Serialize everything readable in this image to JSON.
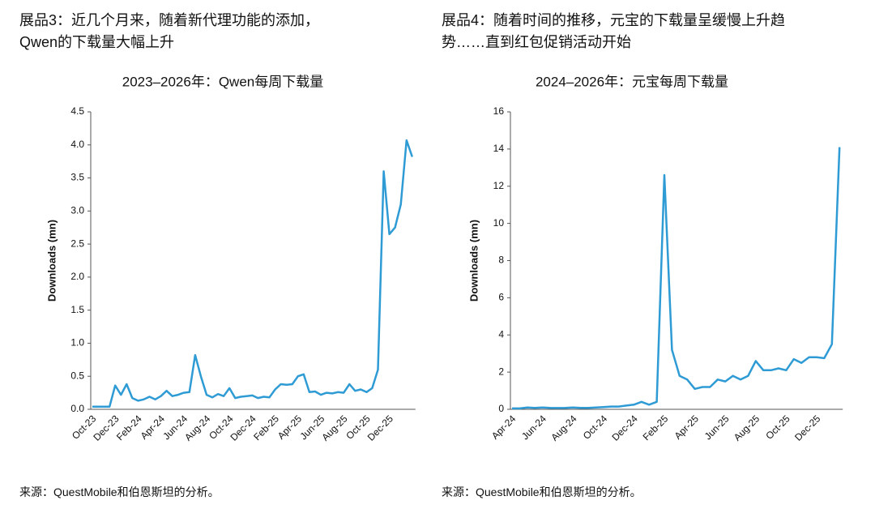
{
  "exhibits": [
    {
      "heading": [
        "展品3：近几个月来，随着新代理功能的添加，",
        "Qwen的下载量大幅上升"
      ],
      "source": "来源：QuestMobile和伯恩斯坦的分析。"
    },
    {
      "heading": [
        "展品4：随着时间的推移，元宝的下载量呈缓慢上升趋",
        "势……直到红包促销活动开始"
      ],
      "source": "来源：QuestMobile和伯恩斯坦的分析。"
    }
  ],
  "chart_data": [
    {
      "type": "line",
      "title": "2023–2026年：Qwen每周下载量",
      "y_label": "Downloads (mn)",
      "color": "#2f9bd5",
      "categories": [
        "Oct-23",
        null,
        null,
        null,
        "Dec-23",
        null,
        null,
        null,
        "Feb-24",
        null,
        null,
        null,
        "Apr-24",
        null,
        null,
        null,
        "Jun-24",
        null,
        null,
        null,
        "Aug-24",
        null,
        null,
        null,
        "Oct-24",
        null,
        null,
        null,
        "Dec-24",
        null,
        null,
        null,
        "Feb-25",
        null,
        null,
        null,
        "Apr-25",
        null,
        null,
        null,
        "Jun-25",
        null,
        null,
        null,
        "Aug-25",
        null,
        null,
        null,
        "Oct-25",
        null,
        null,
        null,
        "Dec-25",
        null,
        null,
        null,
        null
      ],
      "values": [
        0.04,
        0.04,
        0.04,
        0.04,
        0.36,
        0.22,
        0.38,
        0.17,
        0.13,
        0.15,
        0.19,
        0.15,
        0.2,
        0.28,
        0.2,
        0.22,
        0.25,
        0.26,
        0.82,
        0.5,
        0.22,
        0.18,
        0.23,
        0.2,
        0.32,
        0.17,
        0.19,
        0.2,
        0.21,
        0.17,
        0.19,
        0.18,
        0.3,
        0.38,
        0.37,
        0.38,
        0.5,
        0.53,
        0.26,
        0.27,
        0.22,
        0.25,
        0.24,
        0.26,
        0.25,
        0.38,
        0.28,
        0.3,
        0.26,
        0.32,
        0.6,
        3.6,
        2.65,
        2.75,
        3.1,
        4.07,
        3.82
      ],
      "ylim": [
        0,
        4.5
      ],
      "yticks": [
        {
          "value": 0,
          "label": "0.0"
        },
        0.5,
        {
          "value": 1,
          "label": "1.0"
        },
        1.5,
        {
          "value": 2,
          "label": "2.0"
        },
        2.5,
        {
          "value": 3,
          "label": "3.0"
        },
        3.5,
        {
          "value": 4,
          "label": "4.0"
        },
        4.5
      ]
    },
    {
      "type": "line",
      "title": "2024–2026年：元宝每周下载量",
      "y_label": "Downloads (mn)",
      "color": "#2f9bd5",
      "categories": [
        "Apr-24",
        null,
        null,
        null,
        "Jun-24",
        null,
        null,
        null,
        "Aug-24",
        null,
        null,
        null,
        "Oct-24",
        null,
        null,
        null,
        "Dec-24",
        null,
        null,
        null,
        "Feb-25",
        null,
        null,
        null,
        "Apr-25",
        null,
        null,
        null,
        "Jun-25",
        null,
        null,
        null,
        "Aug-25",
        null,
        null,
        null,
        "Oct-25",
        null,
        null,
        null,
        "Dec-25",
        null,
        null,
        null
      ],
      "values": [
        0.05,
        0.05,
        0.1,
        0.08,
        0.1,
        0.08,
        0.07,
        0.08,
        0.1,
        0.08,
        0.08,
        0.1,
        0.12,
        0.15,
        0.15,
        0.2,
        0.25,
        0.4,
        0.25,
        0.4,
        12.6,
        3.2,
        1.8,
        1.6,
        1.1,
        1.2,
        1.2,
        1.6,
        1.5,
        1.8,
        1.6,
        1.8,
        2.6,
        2.1,
        2.1,
        2.2,
        2.1,
        2.7,
        2.5,
        2.8,
        2.8,
        2.75,
        3.5,
        14.1
      ],
      "ylim": [
        0,
        16
      ],
      "yticks": [
        0,
        2,
        4,
        6,
        8,
        10,
        12,
        14,
        16
      ]
    }
  ]
}
